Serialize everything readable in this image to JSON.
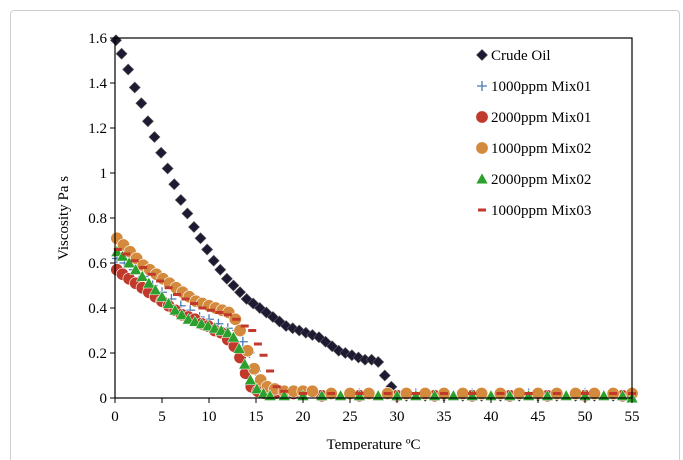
{
  "chart_data": {
    "type": "scatter",
    "title": "",
    "xlabel": "Temperature ºC",
    "ylabel": "Viscosity Pa s",
    "xlim": [
      0,
      55
    ],
    "ylim": [
      0,
      1.6
    ],
    "x_ticks": [
      "0",
      "5",
      "10",
      "15",
      "20",
      "25",
      "30",
      "35",
      "40",
      "45",
      "50",
      "55"
    ],
    "y_ticks": [
      "0",
      "0.2",
      "0.4",
      "0.6",
      "0.8",
      "1",
      "1.2",
      "1.4",
      "1.6"
    ],
    "grid": false,
    "legend_position": "top-right",
    "series": [
      {
        "name": "Crude Oil",
        "marker": "diamond",
        "color": "#1f1a33",
        "points": [
          [
            0.1,
            1.59
          ],
          [
            0.7,
            1.53
          ],
          [
            1.4,
            1.46
          ],
          [
            2.1,
            1.38
          ],
          [
            2.8,
            1.31
          ],
          [
            3.5,
            1.23
          ],
          [
            4.2,
            1.16
          ],
          [
            4.9,
            1.09
          ],
          [
            5.6,
            1.02
          ],
          [
            6.3,
            0.95
          ],
          [
            7.0,
            0.88
          ],
          [
            7.7,
            0.82
          ],
          [
            8.4,
            0.76
          ],
          [
            9.1,
            0.71
          ],
          [
            9.8,
            0.66
          ],
          [
            10.5,
            0.61
          ],
          [
            11.2,
            0.57
          ],
          [
            11.9,
            0.53
          ],
          [
            12.6,
            0.5
          ],
          [
            13.3,
            0.47
          ],
          [
            14.0,
            0.44
          ],
          [
            14.7,
            0.42
          ],
          [
            15.4,
            0.4
          ],
          [
            16.1,
            0.38
          ],
          [
            16.8,
            0.36
          ],
          [
            17.5,
            0.34
          ],
          [
            18.2,
            0.32
          ],
          [
            18.9,
            0.31
          ],
          [
            19.6,
            0.3
          ],
          [
            20.3,
            0.29
          ],
          [
            21.0,
            0.28
          ],
          [
            21.7,
            0.27
          ],
          [
            22.4,
            0.25
          ],
          [
            23.1,
            0.23
          ],
          [
            23.8,
            0.21
          ],
          [
            24.5,
            0.2
          ],
          [
            25.2,
            0.19
          ],
          [
            25.9,
            0.18
          ],
          [
            26.6,
            0.17
          ],
          [
            27.3,
            0.17
          ],
          [
            28.0,
            0.16
          ],
          [
            28.7,
            0.1
          ],
          [
            29.4,
            0.05
          ],
          [
            30.1,
            0.01
          ],
          [
            31,
            0.01
          ],
          [
            33,
            0.01
          ],
          [
            35,
            0.01
          ],
          [
            37,
            0.01
          ],
          [
            39,
            0.01
          ],
          [
            41,
            0.01
          ],
          [
            43,
            0.01
          ],
          [
            45,
            0.01
          ],
          [
            47,
            0.01
          ],
          [
            49,
            0.01
          ],
          [
            51,
            0.01
          ],
          [
            53,
            0.01
          ],
          [
            55,
            0.01
          ]
        ]
      },
      {
        "name": "1000ppm Mix01",
        "marker": "plus",
        "color": "#4a7ab5",
        "points": [
          [
            0.2,
            0.62
          ],
          [
            1,
            0.6
          ],
          [
            2,
            0.57
          ],
          [
            3,
            0.54
          ],
          [
            4,
            0.5
          ],
          [
            5,
            0.47
          ],
          [
            6,
            0.44
          ],
          [
            7,
            0.41
          ],
          [
            8,
            0.39
          ],
          [
            9,
            0.36
          ],
          [
            10,
            0.35
          ],
          [
            11,
            0.33
          ],
          [
            12,
            0.31
          ],
          [
            13,
            0.3
          ],
          [
            13.6,
            0.25
          ],
          [
            14.3,
            0.2
          ],
          [
            15,
            0.12
          ],
          [
            16,
            0.05
          ],
          [
            17,
            0.03
          ],
          [
            18,
            0.02
          ],
          [
            20,
            0.02
          ],
          [
            23,
            0.02
          ],
          [
            26,
            0.02
          ],
          [
            29,
            0.02
          ],
          [
            32,
            0.02
          ],
          [
            35,
            0.02
          ],
          [
            38,
            0.02
          ],
          [
            41,
            0.02
          ],
          [
            44,
            0.02
          ],
          [
            47,
            0.02
          ],
          [
            50,
            0.02
          ],
          [
            53,
            0.02
          ],
          [
            55,
            0.02
          ]
        ]
      },
      {
        "name": "2000ppm Mix01",
        "marker": "circle",
        "color": "#c0392b",
        "points": [
          [
            0.2,
            0.57
          ],
          [
            0.8,
            0.55
          ],
          [
            1.5,
            0.53
          ],
          [
            2.2,
            0.51
          ],
          [
            2.9,
            0.49
          ],
          [
            3.6,
            0.47
          ],
          [
            4.3,
            0.45
          ],
          [
            5.0,
            0.43
          ],
          [
            5.7,
            0.41
          ],
          [
            6.4,
            0.39
          ],
          [
            7.1,
            0.37
          ],
          [
            7.8,
            0.36
          ],
          [
            8.5,
            0.35
          ],
          [
            9.2,
            0.33
          ],
          [
            9.9,
            0.32
          ],
          [
            10.6,
            0.3
          ],
          [
            11.3,
            0.29
          ],
          [
            12.0,
            0.26
          ],
          [
            12.7,
            0.23
          ],
          [
            13.3,
            0.18
          ],
          [
            13.9,
            0.11
          ],
          [
            14.5,
            0.05
          ],
          [
            15.2,
            0.03
          ],
          [
            16,
            0.02
          ],
          [
            17,
            0.02
          ],
          [
            19,
            0.02
          ],
          [
            22,
            0.01
          ],
          [
            26,
            0.01
          ],
          [
            30,
            0.01
          ],
          [
            34,
            0.01
          ],
          [
            38,
            0.01
          ],
          [
            42,
            0.01
          ],
          [
            46,
            0.01
          ],
          [
            50,
            0.01
          ],
          [
            54,
            0.01
          ]
        ]
      },
      {
        "name": "1000ppm Mix02",
        "marker": "circle",
        "color": "#d48a3c",
        "points": [
          [
            0.2,
            0.71
          ],
          [
            0.9,
            0.68
          ],
          [
            1.6,
            0.65
          ],
          [
            2.3,
            0.62
          ],
          [
            3.0,
            0.59
          ],
          [
            3.7,
            0.57
          ],
          [
            4.4,
            0.55
          ],
          [
            5.1,
            0.53
          ],
          [
            5.8,
            0.51
          ],
          [
            6.5,
            0.49
          ],
          [
            7.2,
            0.47
          ],
          [
            7.9,
            0.45
          ],
          [
            8.6,
            0.43
          ],
          [
            9.3,
            0.42
          ],
          [
            10.0,
            0.41
          ],
          [
            10.7,
            0.4
          ],
          [
            11.4,
            0.39
          ],
          [
            12.1,
            0.38
          ],
          [
            12.8,
            0.35
          ],
          [
            13.3,
            0.3
          ],
          [
            14.1,
            0.21
          ],
          [
            14.8,
            0.13
          ],
          [
            15.5,
            0.08
          ],
          [
            16.2,
            0.05
          ],
          [
            17,
            0.04
          ],
          [
            18,
            0.03
          ],
          [
            19,
            0.03
          ],
          [
            20,
            0.03
          ],
          [
            21,
            0.03
          ],
          [
            23,
            0.02
          ],
          [
            25,
            0.02
          ],
          [
            27,
            0.02
          ],
          [
            29,
            0.02
          ],
          [
            31,
            0.02
          ],
          [
            33,
            0.02
          ],
          [
            35,
            0.02
          ],
          [
            37,
            0.02
          ],
          [
            39,
            0.02
          ],
          [
            41,
            0.02
          ],
          [
            43,
            0.02
          ],
          [
            45,
            0.02
          ],
          [
            47,
            0.02
          ],
          [
            49,
            0.02
          ],
          [
            51,
            0.02
          ],
          [
            53,
            0.02
          ],
          [
            55,
            0.02
          ]
        ]
      },
      {
        "name": "2000ppm Mix02",
        "marker": "triangle",
        "color": "#2ca02c",
        "points": [
          [
            0.2,
            0.65
          ],
          [
            0.8,
            0.63
          ],
          [
            1.5,
            0.6
          ],
          [
            2.2,
            0.57
          ],
          [
            2.9,
            0.54
          ],
          [
            3.6,
            0.51
          ],
          [
            4.3,
            0.48
          ],
          [
            5.0,
            0.45
          ],
          [
            5.7,
            0.42
          ],
          [
            6.4,
            0.39
          ],
          [
            7.1,
            0.37
          ],
          [
            7.8,
            0.35
          ],
          [
            8.5,
            0.34
          ],
          [
            9.2,
            0.33
          ],
          [
            9.9,
            0.32
          ],
          [
            10.6,
            0.31
          ],
          [
            11.3,
            0.3
          ],
          [
            12.0,
            0.29
          ],
          [
            12.6,
            0.27
          ],
          [
            13.2,
            0.22
          ],
          [
            13.8,
            0.15
          ],
          [
            14.4,
            0.08
          ],
          [
            15.1,
            0.04
          ],
          [
            15.8,
            0.02
          ],
          [
            16.5,
            0.01
          ],
          [
            18,
            0.01
          ],
          [
            20,
            0.01
          ],
          [
            22,
            0.01
          ],
          [
            24,
            0.01
          ],
          [
            26,
            0.01
          ],
          [
            28,
            0.01
          ],
          [
            30,
            0.01
          ],
          [
            32,
            0.01
          ],
          [
            34,
            0.01
          ],
          [
            36,
            0.01
          ],
          [
            38,
            0.01
          ],
          [
            40,
            0.01
          ],
          [
            42,
            0.01
          ],
          [
            44,
            0.01
          ],
          [
            46,
            0.01
          ],
          [
            48,
            0.01
          ],
          [
            50,
            0.01
          ],
          [
            52,
            0.01
          ],
          [
            54,
            0.01
          ],
          [
            55,
            0.0
          ]
        ]
      },
      {
        "name": "1000ppm Mix03",
        "marker": "dash",
        "color": "#c0392b",
        "points": [
          [
            0.3,
            0.66
          ],
          [
            1.2,
            0.64
          ],
          [
            2.1,
            0.61
          ],
          [
            3.0,
            0.58
          ],
          [
            3.9,
            0.55
          ],
          [
            4.8,
            0.52
          ],
          [
            5.7,
            0.49
          ],
          [
            6.6,
            0.46
          ],
          [
            7.5,
            0.44
          ],
          [
            8.4,
            0.42
          ],
          [
            9.3,
            0.4
          ],
          [
            10.2,
            0.39
          ],
          [
            11.1,
            0.38
          ],
          [
            12.0,
            0.37
          ],
          [
            12.9,
            0.35
          ],
          [
            13.8,
            0.32
          ],
          [
            14.6,
            0.3
          ],
          [
            15.2,
            0.24
          ],
          [
            15.8,
            0.19
          ],
          [
            16.5,
            0.12
          ],
          [
            17.2,
            0.05
          ],
          [
            18,
            0.03
          ],
          [
            20,
            0.02
          ],
          [
            23,
            0.02
          ],
          [
            26,
            0.02
          ],
          [
            29,
            0.02
          ],
          [
            32,
            0.02
          ],
          [
            35,
            0.02
          ],
          [
            38,
            0.02
          ],
          [
            41,
            0.02
          ],
          [
            44,
            0.02
          ],
          [
            47,
            0.02
          ],
          [
            50,
            0.02
          ],
          [
            53,
            0.02
          ],
          [
            55,
            0.02
          ]
        ]
      }
    ]
  }
}
